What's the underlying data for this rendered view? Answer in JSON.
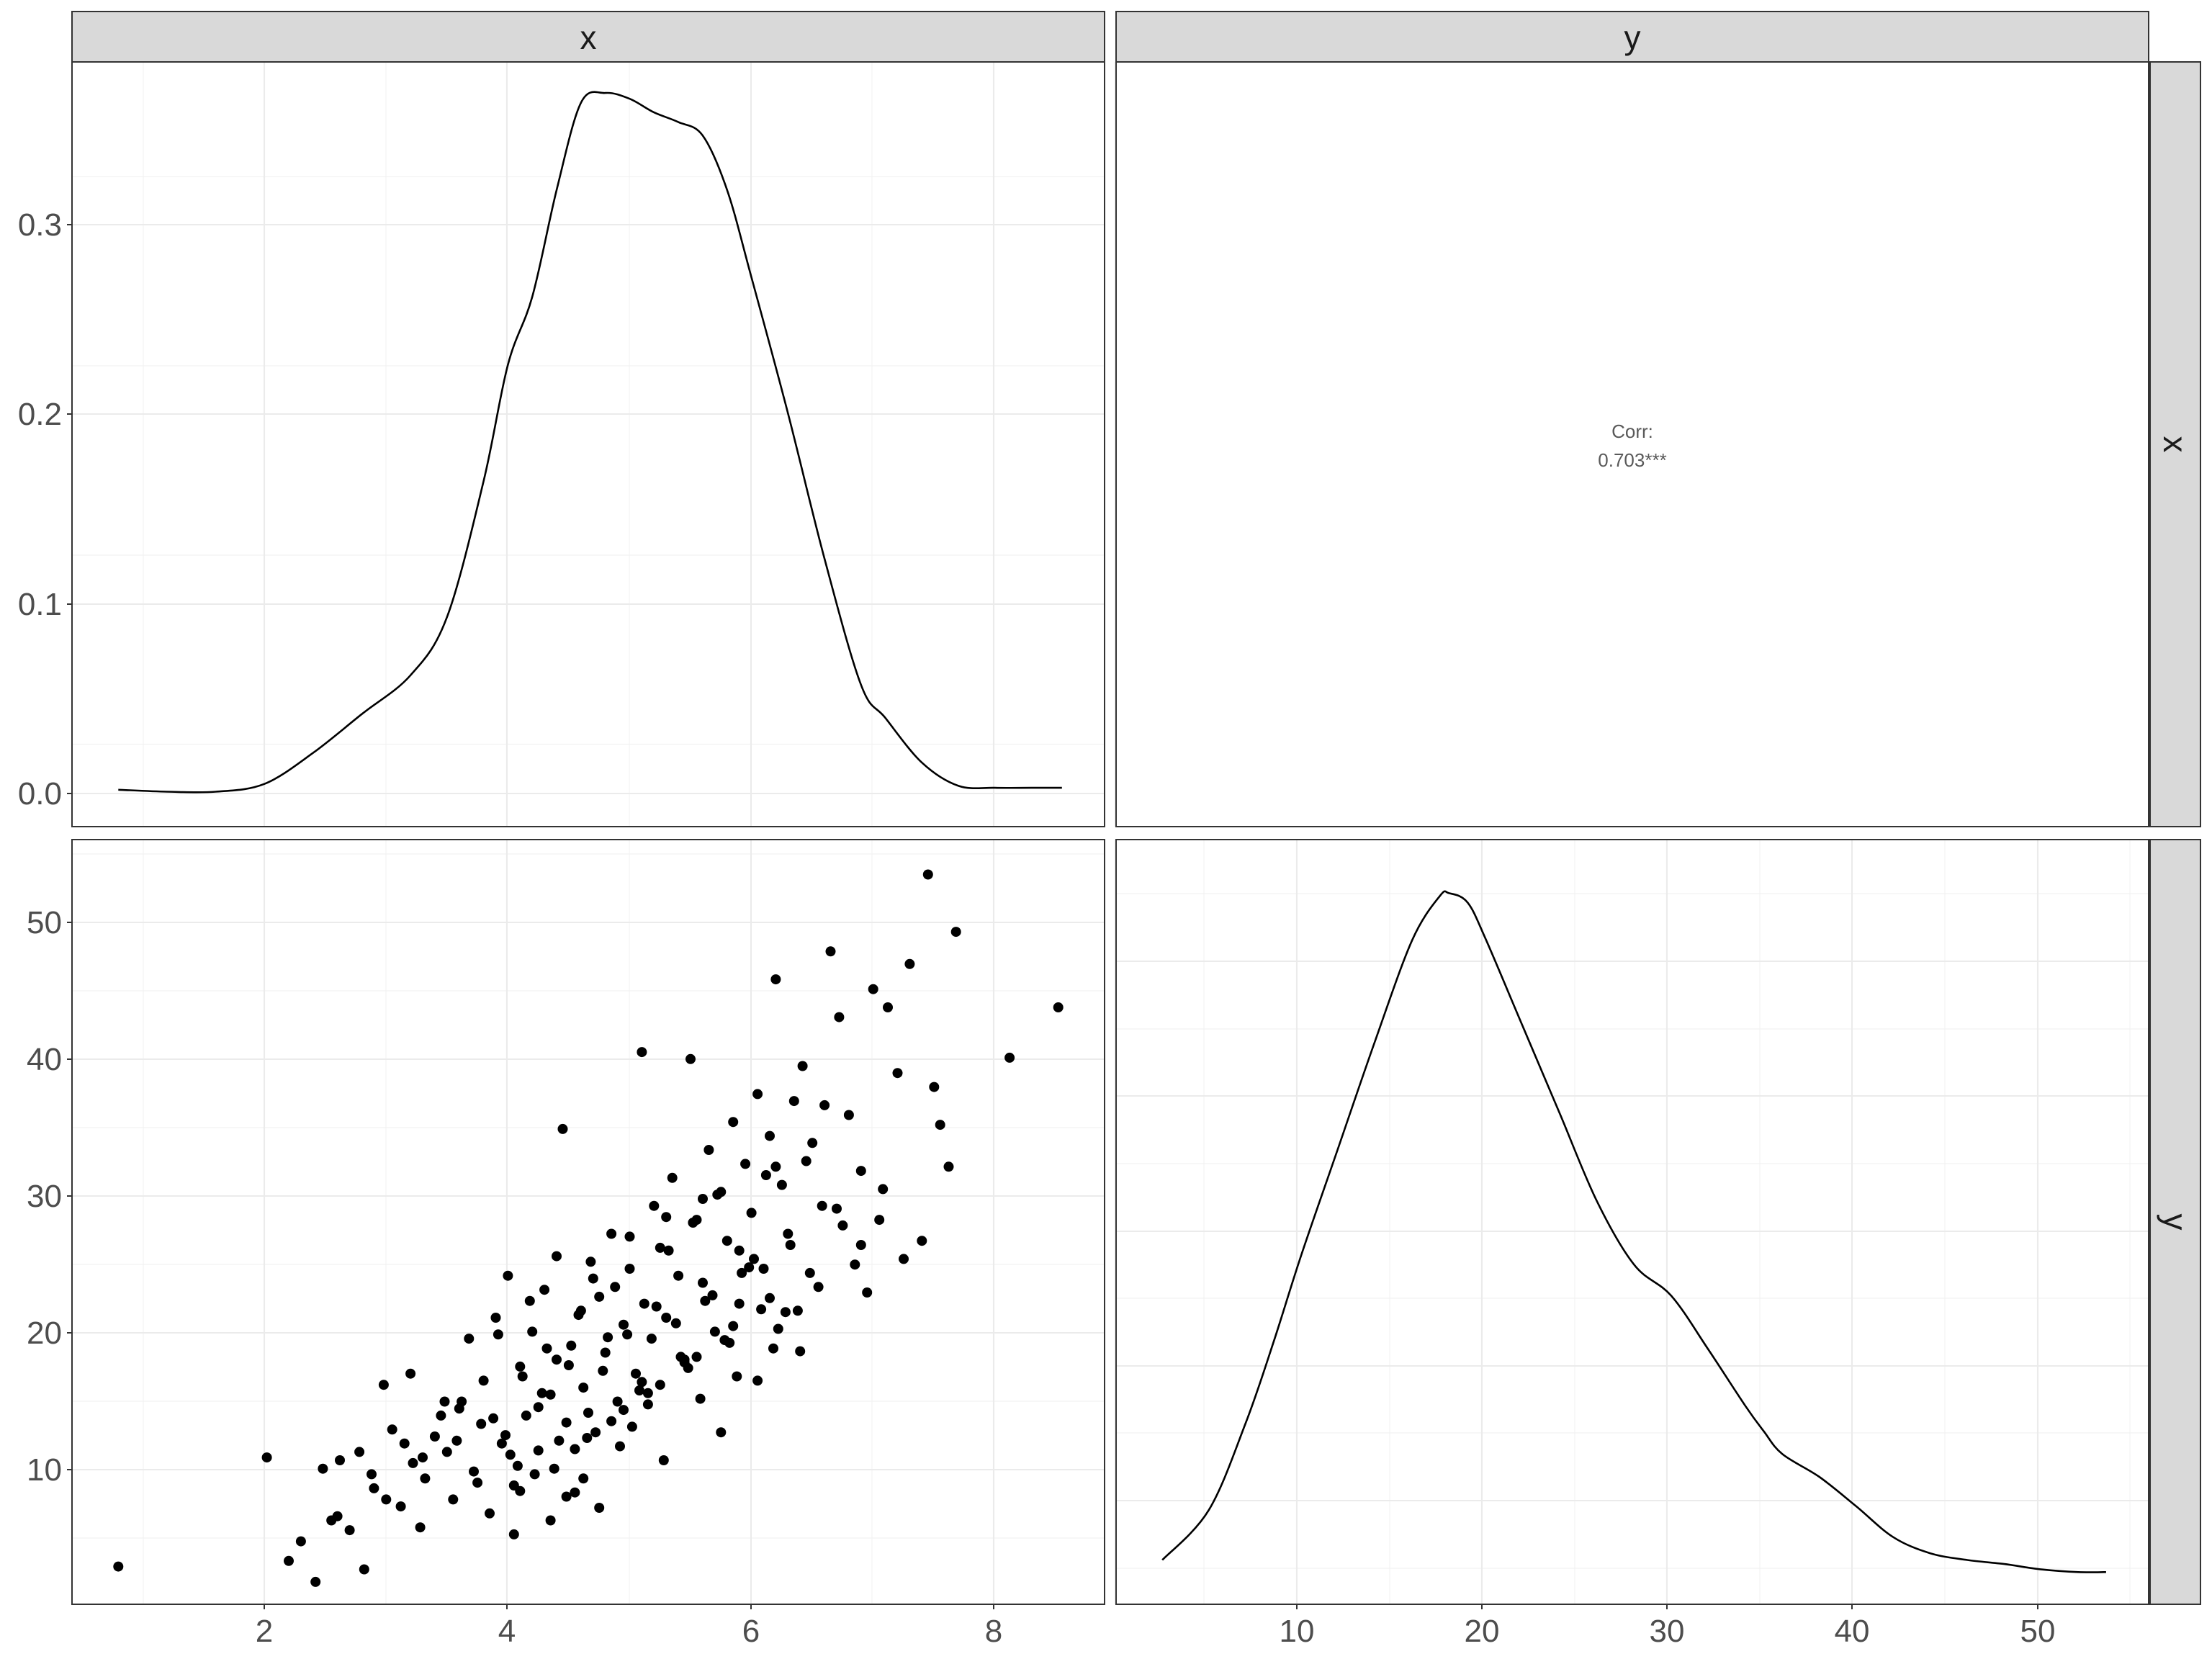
{
  "strips": {
    "col_x": "x",
    "col_y": "y",
    "row_x": "x",
    "row_y": "y"
  },
  "correlation": {
    "label": "Corr:",
    "value": "0.703***"
  },
  "axes": {
    "x_var_ticks": [
      "2",
      "4",
      "6",
      "8"
    ],
    "y_var_ticks": [
      "10",
      "20",
      "30",
      "40",
      "50"
    ],
    "density_ticks": [
      "0.0",
      "0.1",
      "0.2",
      "0.3"
    ]
  },
  "chart_data": [
    {
      "type": "line",
      "panel": "x-density",
      "xlim": [
        0.42,
        8.9
      ],
      "ylim": [
        -0.018,
        0.376
      ],
      "x": [
        0.8,
        1.2,
        1.6,
        2.0,
        2.4,
        2.8,
        3.2,
        3.5,
        3.8,
        4.0,
        4.2,
        4.4,
        4.6,
        4.8,
        5.0,
        5.2,
        5.4,
        5.6,
        5.8,
        6.0,
        6.3,
        6.6,
        6.9,
        7.1,
        7.4,
        7.7,
        8.0,
        8.3,
        8.55
      ],
      "y": [
        0.001,
        0.0,
        0.0,
        0.004,
        0.02,
        0.04,
        0.06,
        0.09,
        0.16,
        0.22,
        0.255,
        0.31,
        0.355,
        0.36,
        0.357,
        0.35,
        0.345,
        0.338,
        0.31,
        0.265,
        0.195,
        0.12,
        0.055,
        0.038,
        0.015,
        0.003,
        0.002,
        0.002,
        0.002
      ]
    },
    {
      "type": "line",
      "panel": "y-density",
      "xlim": [
        0.0,
        55.8
      ],
      "ylim": [
        -0.0015,
        0.0555
      ],
      "x": [
        2.5,
        5,
        7,
        8.5,
        10,
        12,
        14,
        16,
        17.5,
        18,
        19,
        20,
        22,
        24,
        26,
        28,
        30,
        32,
        34,
        35,
        36,
        38,
        40,
        42,
        44,
        46,
        48,
        50,
        52,
        53.5
      ],
      "y": [
        0.0018,
        0.0055,
        0.012,
        0.018,
        0.0245,
        0.0325,
        0.0405,
        0.048,
        0.0513,
        0.0515,
        0.0508,
        0.048,
        0.0415,
        0.035,
        0.0285,
        0.0238,
        0.0215,
        0.0175,
        0.0133,
        0.0114,
        0.0097,
        0.008,
        0.0058,
        0.0035,
        0.0023,
        0.0018,
        0.0015,
        0.0011,
        0.0009,
        0.0009
      ]
    },
    {
      "type": "scatter",
      "panel": "x-vs-y",
      "xlabel": "",
      "ylabel": "",
      "xlim": [
        0.42,
        8.9
      ],
      "ylim": [
        1.5,
        56.2
      ],
      "x": [
        0.8,
        2.02,
        2.2,
        2.3,
        2.42,
        2.48,
        2.55,
        2.62,
        2.7,
        2.78,
        2.82,
        2.9,
        2.98,
        3.05,
        3.12,
        3.2,
        3.28,
        3.32,
        3.4,
        3.48,
        3.55,
        3.6,
        3.68,
        3.72,
        3.8,
        3.85,
        3.9,
        3.95,
        4.0,
        4.05,
        4.1,
        4.15,
        4.2,
        4.25,
        4.3,
        4.35,
        4.4,
        4.45,
        4.48,
        4.52,
        4.55,
        4.6,
        4.62,
        4.68,
        4.72,
        4.75,
        4.8,
        4.85,
        4.9,
        4.95,
        5.0,
        5.05,
        5.1,
        5.12,
        5.18,
        5.2,
        5.25,
        5.3,
        5.35,
        5.4,
        5.45,
        5.5,
        5.55,
        5.6,
        5.65,
        5.7,
        5.75,
        5.8,
        5.85,
        5.9,
        5.95,
        6.0,
        6.05,
        6.1,
        6.15,
        6.2,
        6.25,
        6.3,
        6.35,
        6.42,
        6.5,
        6.58,
        6.65,
        6.72,
        6.8,
        6.9,
        7.0,
        7.05,
        7.12,
        7.2,
        7.3,
        7.4,
        7.45,
        7.5,
        7.55,
        7.62,
        7.68,
        8.12,
        8.52,
        3.0,
        3.3,
        3.62,
        3.75,
        3.88,
        4.02,
        4.12,
        4.22,
        4.32,
        4.42,
        4.58,
        4.66,
        4.78,
        4.88,
        4.98,
        5.08,
        5.22,
        5.32,
        5.42,
        5.52,
        5.62,
        5.72,
        5.82,
        5.92,
        6.02,
        6.12,
        6.22,
        6.32,
        6.45,
        6.55,
        6.7,
        6.85,
        6.95,
        4.05,
        4.35,
        4.62,
        4.92,
        5.15,
        5.45,
        5.75,
        6.05,
        6.38,
        4.48,
        4.75,
        5.02,
        5.28,
        5.58,
        5.88,
        6.18,
        3.92,
        4.18,
        4.4,
        4.7,
        5.0,
        5.3,
        5.6,
        5.9,
        6.2,
        6.6,
        3.5,
        3.78,
        4.08,
        4.28,
        4.5,
        4.82,
        5.1,
        5.38,
        5.68,
        5.98,
        6.28,
        6.75,
        7.08,
        3.15,
        3.45,
        3.98,
        4.25,
        4.55,
        4.85,
        5.15,
        5.48,
        5.78,
        6.08,
        6.4,
        6.9,
        2.6,
        2.88,
        3.22,
        3.58,
        4.1,
        4.38,
        4.65,
        4.95,
        5.25,
        5.55,
        5.85,
        6.15,
        6.48,
        7.25
      ],
      "y": [
        4.2,
        12.0,
        4.6,
        6.0,
        3.1,
        11.2,
        7.5,
        11.8,
        6.8,
        12.4,
        4.0,
        9.8,
        17.2,
        14.0,
        8.5,
        18.0,
        7.0,
        10.5,
        13.5,
        16.0,
        9.0,
        15.5,
        20.5,
        11.0,
        17.5,
        8.0,
        22.0,
        13.0,
        25.0,
        10.0,
        18.5,
        15.0,
        21.0,
        12.5,
        24.0,
        16.5,
        19.0,
        35.5,
        14.5,
        20.0,
        9.5,
        22.5,
        17.0,
        26.0,
        13.8,
        23.5,
        19.5,
        28.0,
        16.0,
        21.5,
        25.5,
        18.0,
        41.0,
        23.0,
        20.5,
        30.0,
        27.0,
        22.0,
        32.0,
        25.0,
        19.0,
        40.5,
        29.0,
        24.5,
        34.0,
        21.0,
        31.0,
        27.5,
        36.0,
        23.0,
        33.0,
        29.5,
        38.0,
        25.5,
        35.0,
        46.2,
        31.5,
        28.0,
        37.5,
        40.0,
        34.5,
        30.0,
        48.2,
        43.5,
        36.5,
        32.5,
        45.5,
        29.0,
        44.2,
        39.5,
        47.3,
        27.5,
        53.7,
        38.5,
        35.8,
        32.8,
        49.6,
        40.6,
        44.2,
        9.0,
        12.0,
        16.0,
        10.2,
        14.8,
        12.2,
        17.8,
        10.8,
        19.8,
        13.2,
        22.2,
        15.2,
        18.2,
        24.2,
        20.8,
        16.8,
        22.8,
        26.8,
        19.2,
        28.8,
        23.2,
        30.8,
        20.2,
        25.2,
        26.2,
        32.2,
        21.2,
        27.2,
        33.2,
        24.2,
        29.8,
        25.8,
        23.8,
        6.5,
        7.5,
        10.5,
        12.8,
        15.8,
        18.8,
        13.8,
        17.5,
        22.5,
        9.2,
        8.4,
        14.2,
        11.8,
        16.2,
        17.8,
        19.8,
        20.8,
        23.2,
        26.4,
        24.8,
        27.8,
        29.2,
        30.5,
        26.8,
        32.8,
        37.2,
        12.4,
        14.4,
        11.4,
        16.6,
        18.6,
        20.6,
        17.4,
        21.6,
        23.6,
        25.6,
        22.4,
        28.6,
        31.2,
        13.0,
        15.0,
        13.6,
        15.6,
        12.6,
        14.6,
        16.6,
        18.4,
        20.4,
        22.6,
        19.6,
        27.2,
        7.8,
        10.8,
        11.6,
        13.2,
        9.6,
        11.2,
        13.4,
        15.4,
        17.2,
        19.2,
        21.4,
        23.4,
        25.2,
        26.2
      ]
    }
  ]
}
